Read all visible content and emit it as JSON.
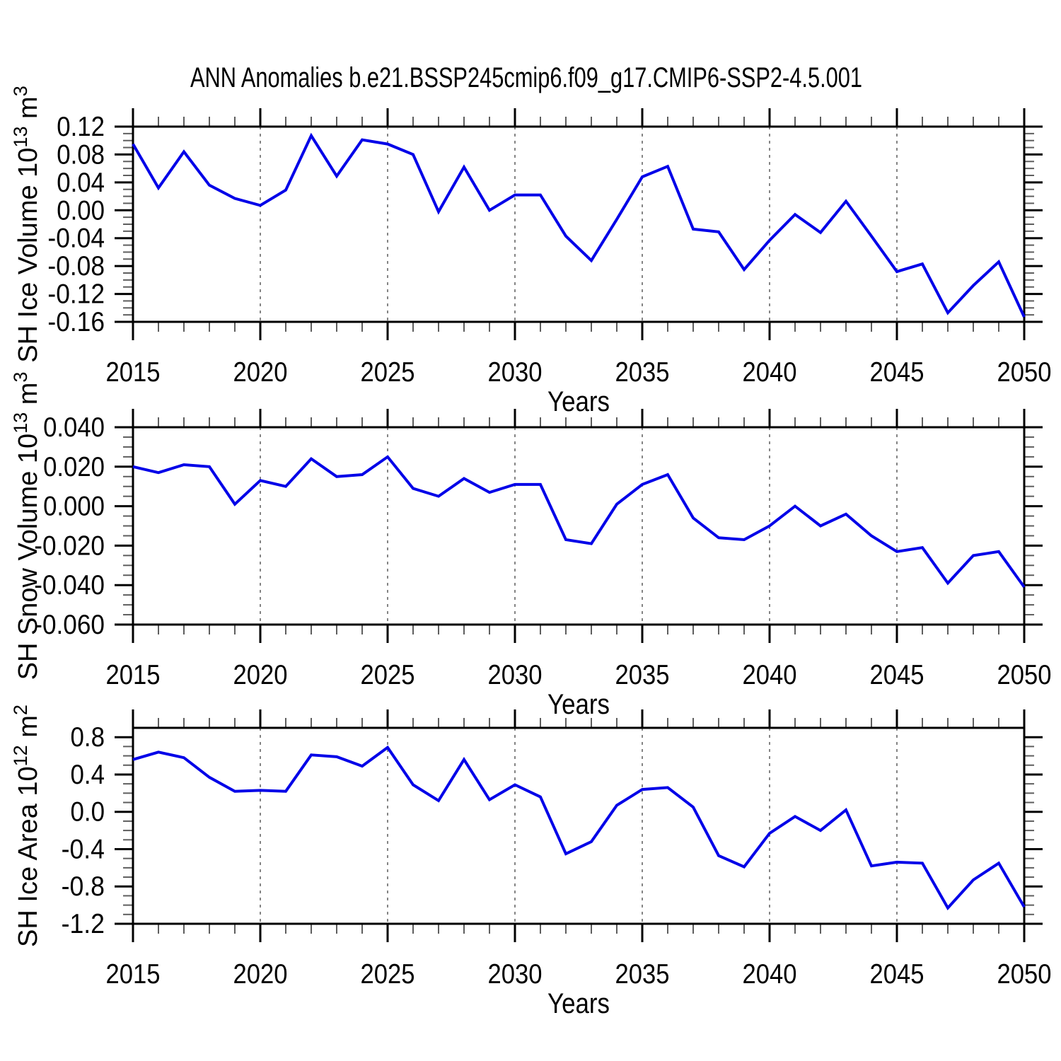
{
  "title": "ANN Anomalies b.e21.BSSP245cmip6.f09_g17.CMIP6-SSP2-4.5.001",
  "colors": {
    "background": "#ffffff",
    "line": "#0000e8",
    "frame": "#000000",
    "grid": "#858585",
    "minor_tick": "#5e5e5e",
    "text": "#000000"
  },
  "x_axis": {
    "label": "Years",
    "tick_labels": [
      "2015",
      "2020",
      "2025",
      "2030",
      "2035",
      "2040",
      "2045",
      "2050"
    ],
    "major_tick_years": [
      2015,
      2020,
      2025,
      2030,
      2035,
      2040,
      2045,
      2050
    ],
    "grid_years": [
      2020,
      2025,
      2030,
      2035,
      2040,
      2045
    ],
    "xlim": [
      2015,
      2050
    ]
  },
  "years": [
    2015,
    2016,
    2017,
    2018,
    2019,
    2020,
    2021,
    2022,
    2023,
    2024,
    2025,
    2026,
    2027,
    2028,
    2029,
    2030,
    2031,
    2032,
    2033,
    2034,
    2035,
    2036,
    2037,
    2038,
    2039,
    2040,
    2041,
    2042,
    2043,
    2044,
    2045,
    2046,
    2047,
    2048,
    2049,
    2050
  ],
  "chart_data": [
    {
      "type": "line",
      "series_name": "SH Ice Volume",
      "ylabel_text": "SH Ice Volume 10^13 m^3",
      "ylabel_parts": [
        {
          "t": "SH Ice Volume 10"
        },
        {
          "t": "13",
          "sup": true
        },
        {
          "t": " m"
        },
        {
          "t": "3",
          "sup": true
        }
      ],
      "xlabel": "Years",
      "ylim": [
        -0.16,
        0.12
      ],
      "ytick_values": [
        0.12,
        0.08,
        0.04,
        0.0,
        -0.04,
        -0.08,
        -0.12,
        -0.16
      ],
      "ytick_labels": [
        "0.12",
        "0.08",
        "0.04",
        "0.00",
        "-0.04",
        "-0.08",
        "-0.12",
        "-0.16"
      ],
      "yminor_step": 0.01,
      "values": [
        0.095,
        0.032,
        0.084,
        0.036,
        0.017,
        0.007,
        0.029,
        0.107,
        0.049,
        0.101,
        0.095,
        0.08,
        -0.002,
        0.062,
        0.0,
        0.022,
        0.022,
        -0.037,
        -0.072,
        -0.013,
        0.048,
        0.063,
        -0.027,
        -0.031,
        -0.085,
        -0.043,
        -0.006,
        -0.032,
        0.013,
        -0.037,
        -0.088,
        -0.077,
        -0.147,
        -0.108,
        -0.074,
        -0.153
      ]
    },
    {
      "type": "line",
      "series_name": "SH Snow Volume",
      "ylabel_text": "SH Snow Volume 10^13 m^3",
      "ylabel_parts": [
        {
          "t": "SH Snow Volume 10"
        },
        {
          "t": "13",
          "sup": true
        },
        {
          "t": " m"
        },
        {
          "t": "3",
          "sup": true
        }
      ],
      "xlabel": "Years",
      "ylim": [
        -0.06,
        0.04
      ],
      "ytick_values": [
        0.04,
        0.02,
        0.0,
        -0.02,
        -0.04,
        -0.06
      ],
      "ytick_labels": [
        "0.040",
        "0.020",
        "0.000",
        "-0.020",
        "-0.040",
        "-0.060"
      ],
      "yminor_step": 0.005,
      "values": [
        0.02,
        0.017,
        0.021,
        0.02,
        0.001,
        0.013,
        0.01,
        0.024,
        0.015,
        0.016,
        0.025,
        0.009,
        0.005,
        0.014,
        0.007,
        0.011,
        0.011,
        -0.017,
        -0.019,
        0.001,
        0.011,
        0.016,
        -0.006,
        -0.016,
        -0.017,
        -0.01,
        0.0,
        -0.01,
        -0.004,
        -0.015,
        -0.023,
        -0.021,
        -0.039,
        -0.025,
        -0.023,
        -0.041
      ]
    },
    {
      "type": "line",
      "series_name": "SH Ice Area",
      "ylabel_text": "SH Ice Area 10^12 m^2",
      "ylabel_parts": [
        {
          "t": "SH Ice Area 10"
        },
        {
          "t": "12",
          "sup": true
        },
        {
          "t": " m"
        },
        {
          "t": "2",
          "sup": true
        }
      ],
      "xlabel": "Years",
      "ylim": [
        -1.2,
        0.9
      ],
      "ytick_values": [
        0.8,
        0.4,
        0.0,
        -0.4,
        -0.8,
        -1.2
      ],
      "ytick_labels": [
        "0.8",
        "0.4",
        "0.0",
        "-0.4",
        "-0.8",
        "-1.2"
      ],
      "yminor_step": 0.1,
      "values": [
        0.56,
        0.64,
        0.58,
        0.37,
        0.22,
        0.23,
        0.22,
        0.61,
        0.59,
        0.49,
        0.69,
        0.29,
        0.12,
        0.56,
        0.13,
        0.29,
        0.16,
        -0.45,
        -0.32,
        0.07,
        0.24,
        0.26,
        0.05,
        -0.47,
        -0.59,
        -0.23,
        -0.05,
        -0.2,
        0.02,
        -0.58,
        -0.54,
        -0.55,
        -1.03,
        -0.73,
        -0.55,
        -1.02
      ]
    }
  ]
}
